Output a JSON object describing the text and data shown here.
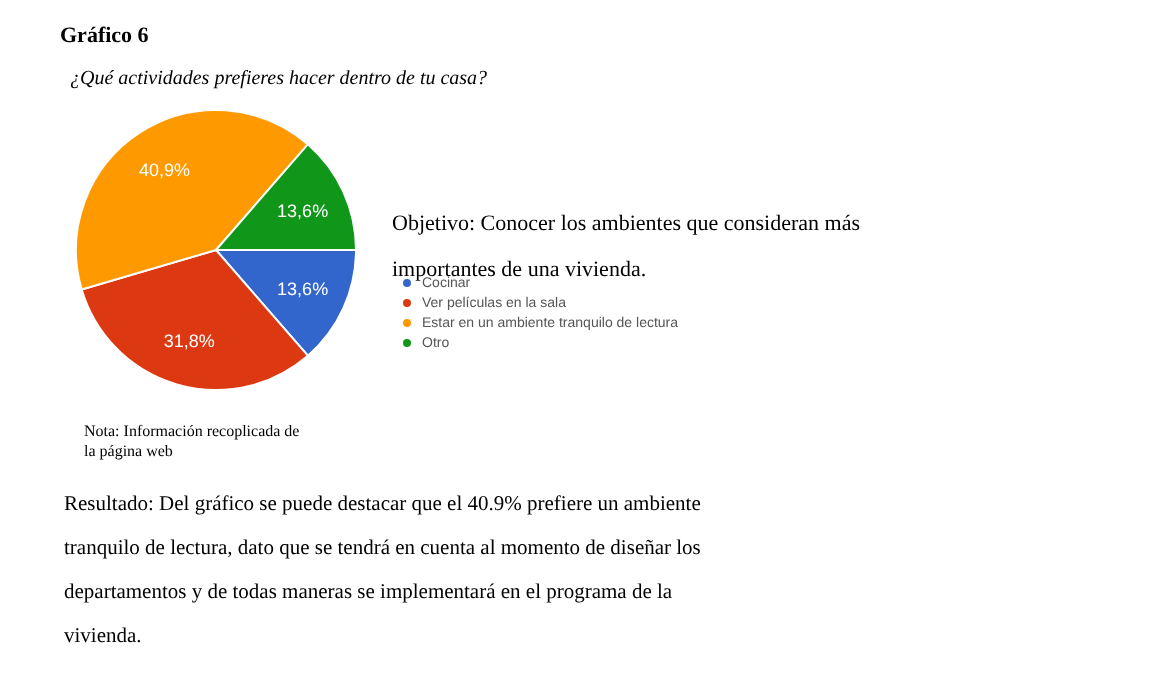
{
  "chart_data": {
    "type": "pie",
    "title": "Gráfico 6",
    "subtitle": "¿Qué actividades prefieres hacer dentro de tu casa?",
    "categories": [
      "Cocinar",
      "Ver películas en la sala",
      "Estar en un ambiente tranquilo de lectura",
      "Otro"
    ],
    "values": [
      13.6,
      31.8,
      40.9,
      13.6
    ],
    "colors": [
      "#3366cc",
      "#dc3912",
      "#ff9900",
      "#109618"
    ],
    "value_labels": [
      "13,6%",
      "31,8%",
      "40,9%",
      "13,6%"
    ],
    "legend": "right",
    "annotations": [
      "Objetivo: Conocer los ambientes que consideran más importantes de una vivienda.",
      "Nota: Información recoplicada de la página web",
      "Resultado: Del gráfico se puede destacar que el 40.9% prefiere un ambiente tranquilo de lectura, dato que se tendrá en cuenta al momento de diseñar los departamentos y de todas maneras se implementará en el programa de la vivienda."
    ]
  }
}
